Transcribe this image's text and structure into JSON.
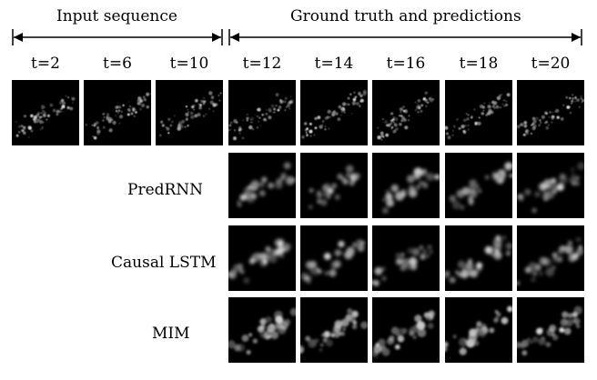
{
  "headers": {
    "input": "Input sequence",
    "ground_truth": "Ground truth and predictions"
  },
  "timesteps": [
    "t=2",
    "t=6",
    "t=10",
    "t=12",
    "t=14",
    "t=16",
    "t=18",
    "t=20"
  ],
  "row_labels": {
    "predrnn": "PredRNN",
    "causal_lstm": "Causal LSTM",
    "mim": "MIM"
  }
}
